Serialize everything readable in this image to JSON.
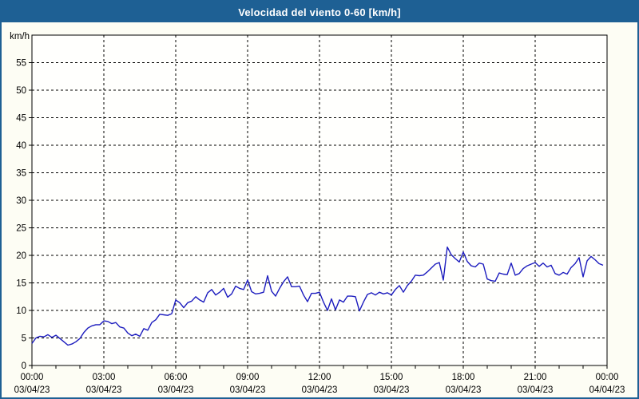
{
  "window": {
    "title": "Velocidad del viento 0-60 [km/h]"
  },
  "colors": {
    "titlebar": "#1e6094",
    "page_border": "#1e6094",
    "page_background": "#fdfdf4",
    "plot_background": "#fffffd",
    "grid": "#000000",
    "axis": "#000000",
    "line": "#1c1cbe",
    "title_text": "#ffffff",
    "tick_text": "#000000"
  },
  "chart_data": {
    "type": "line",
    "title": "Velocidad del viento 0-60 [km/h]",
    "ylabel": "km/h",
    "xlabel": "",
    "ylim": [
      0,
      60
    ],
    "yticks": [
      0,
      5,
      10,
      15,
      20,
      25,
      30,
      35,
      40,
      45,
      50,
      55
    ],
    "grid": "dashed",
    "legend": "none",
    "x_range_hours": [
      0,
      24
    ],
    "x_major_tick_hours": 3,
    "x_minor_tick_hours": 1,
    "xticks": [
      {
        "time": "00:00",
        "date": "03/04/23"
      },
      {
        "time": "03:00",
        "date": "03/04/23"
      },
      {
        "time": "06:00",
        "date": "03/04/23"
      },
      {
        "time": "09:00",
        "date": "03/04/23"
      },
      {
        "time": "12:00",
        "date": "03/04/23"
      },
      {
        "time": "15:00",
        "date": "03/04/23"
      },
      {
        "time": "18:00",
        "date": "03/04/23"
      },
      {
        "time": "21:00",
        "date": "03/04/23"
      },
      {
        "time": "00:00",
        "date": "04/04/23"
      }
    ],
    "sample_interval_minutes": 10,
    "series": [
      {
        "name": "Velocidad del viento",
        "start_minute": 0,
        "values": [
          4.0,
          5.0,
          5.3,
          5.2,
          5.6,
          5.1,
          5.5,
          4.9,
          4.3,
          3.7,
          3.9,
          4.3,
          4.9,
          6.0,
          6.8,
          7.2,
          7.4,
          7.4,
          8.1,
          8.0,
          7.6,
          7.8,
          7.0,
          6.8,
          5.9,
          5.4,
          5.7,
          5.3,
          6.7,
          6.4,
          7.8,
          8.3,
          9.3,
          9.2,
          9.1,
          9.4,
          11.9,
          11.4,
          10.5,
          11.4,
          11.7,
          12.5,
          11.9,
          11.5,
          13.2,
          13.8,
          12.8,
          13.3,
          14.0,
          12.4,
          13.0,
          14.4,
          14.0,
          13.8,
          15.5,
          13.4,
          13.0,
          13.1,
          13.3,
          16.3,
          13.5,
          12.6,
          14.0,
          15.2,
          16.1,
          14.3,
          14.3,
          14.4,
          12.8,
          11.6,
          13.1,
          13.1,
          13.3,
          11.5,
          10.0,
          12.1,
          10.1,
          11.9,
          11.5,
          12.6,
          12.6,
          12.5,
          9.9,
          11.5,
          12.9,
          13.2,
          12.8,
          13.3,
          13.0,
          13.2,
          12.8,
          13.8,
          14.5,
          13.3,
          14.5,
          15.3,
          16.4,
          16.3,
          16.4,
          17.0,
          17.7,
          18.4,
          18.7,
          15.5,
          21.5,
          20.1,
          19.4,
          18.8,
          20.6,
          18.9,
          18.1,
          17.9,
          18.6,
          18.4,
          15.7,
          15.4,
          15.3,
          16.8,
          16.6,
          16.5,
          18.6,
          16.4,
          16.7,
          17.6,
          18.1,
          18.4,
          18.7,
          18.0,
          18.6,
          17.9,
          18.2,
          16.7,
          16.4,
          16.9,
          16.6,
          17.8,
          18.5,
          19.6,
          16.1,
          19.0,
          19.8,
          19.2,
          18.5,
          18.2
        ]
      }
    ]
  }
}
